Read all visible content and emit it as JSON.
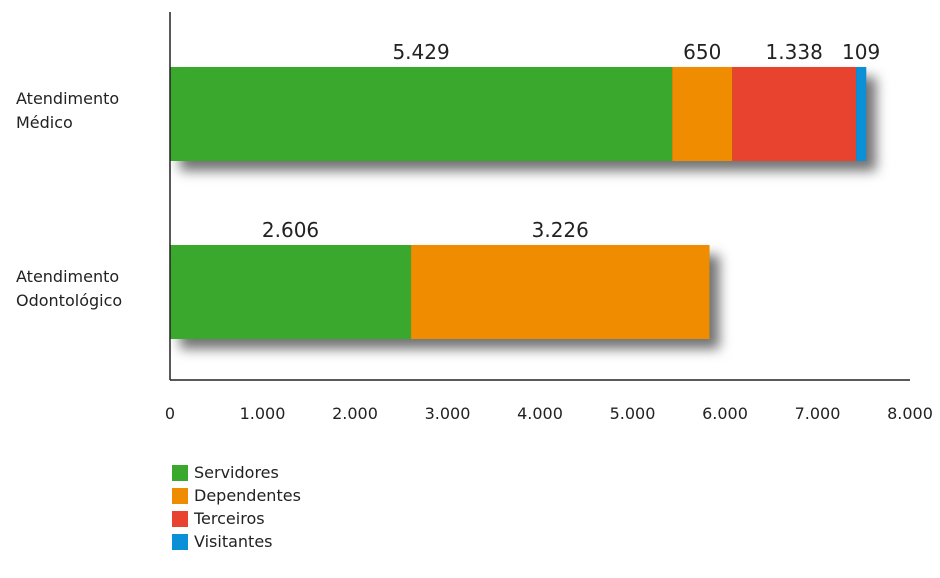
{
  "chart_data": {
    "type": "bar",
    "orientation": "horizontal",
    "stacked": true,
    "categories": [
      "Atendimento Médico",
      "Atendimento Odontológico"
    ],
    "category_lines": [
      [
        "Atendimento",
        "Médico"
      ],
      [
        "Atendimento",
        "Odontológico"
      ]
    ],
    "series": [
      {
        "name": "Servidores",
        "color": "#3aa72d",
        "values": [
          5429,
          2606
        ],
        "labels": [
          "5.429",
          "2.606"
        ]
      },
      {
        "name": "Dependentes",
        "color": "#f08c00",
        "values": [
          650,
          3226
        ],
        "labels": [
          "650",
          "3.226"
        ]
      },
      {
        "name": "Terceiros",
        "color": "#e8432e",
        "values": [
          1338,
          0
        ],
        "labels": [
          "1.338",
          ""
        ]
      },
      {
        "name": "Visitantes",
        "color": "#0b8fd6",
        "values": [
          109,
          0
        ],
        "labels": [
          "109",
          ""
        ]
      }
    ],
    "xlim": [
      0,
      8000
    ],
    "xticks": [
      0,
      1000,
      2000,
      3000,
      4000,
      5000,
      6000,
      7000,
      8000
    ],
    "xtick_labels": [
      "0",
      "1.000",
      "2.000",
      "3.000",
      "4.000",
      "5.000",
      "6.000",
      "7.000",
      "8.000"
    ],
    "grid": false,
    "legend_position": "bottom-left"
  }
}
